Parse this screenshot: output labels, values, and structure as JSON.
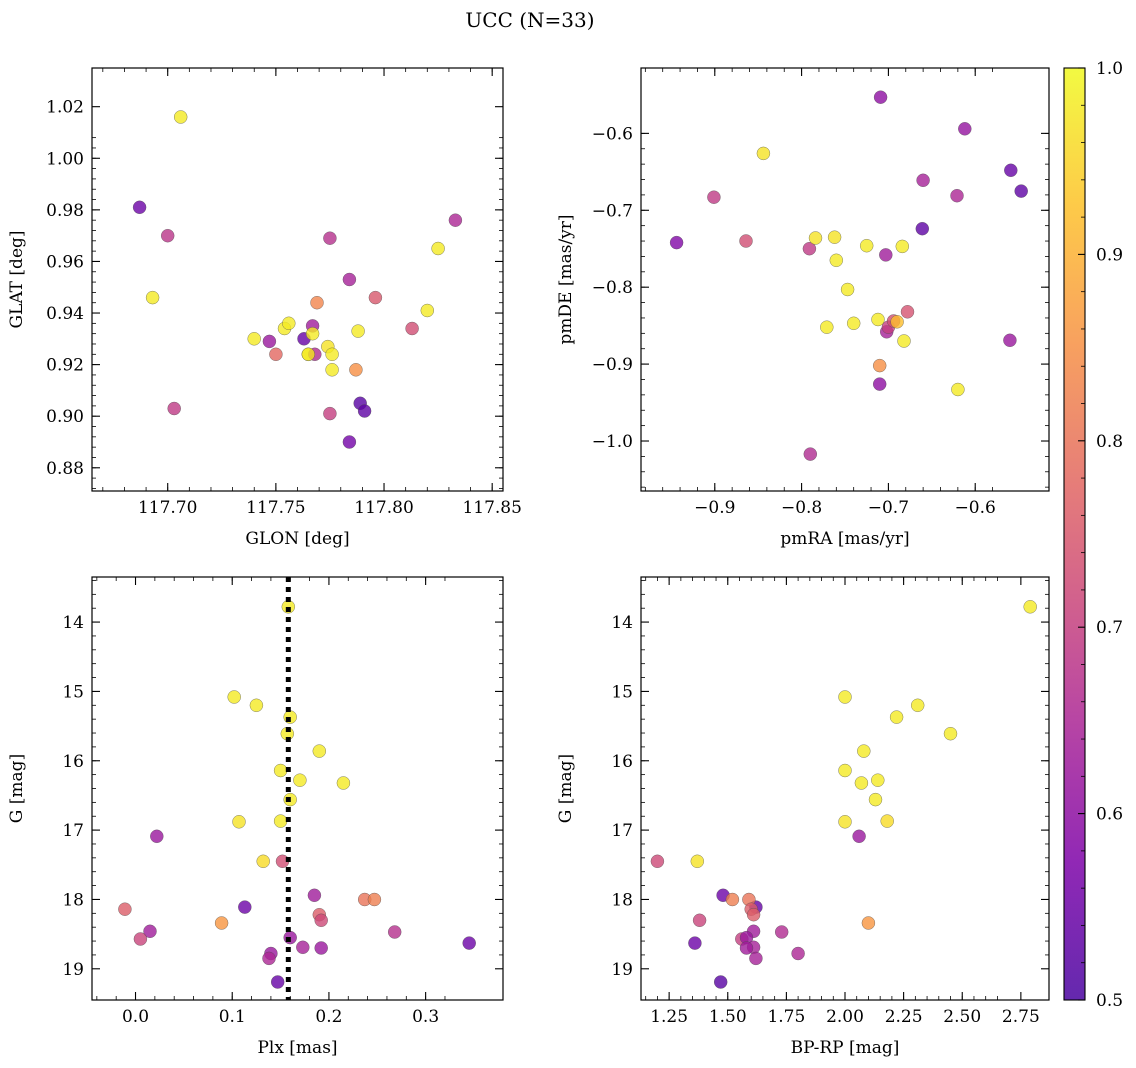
{
  "figure": {
    "title": "UCC (N=33)",
    "colormap": "plasma",
    "point_alpha": 0.8,
    "point_edge_color": "#4d4d4d",
    "reference_line_color": "#000000"
  },
  "colorbar": {
    "min": 0.5,
    "max": 1.0,
    "ticks": [
      0.5,
      0.6,
      0.7,
      0.8,
      0.9,
      1.0
    ],
    "tick_labels": [
      "0.5",
      "0.6",
      "0.7",
      "0.8",
      "0.9",
      "1.0"
    ],
    "label": ""
  },
  "chart_data": [
    {
      "type": "scatter",
      "xlabel": "GLON [deg]",
      "ylabel": "GLAT [deg]",
      "xlim": [
        117.665,
        117.855
      ],
      "ylim": [
        0.871,
        1.035
      ],
      "invert_y": false,
      "xticks": [
        117.7,
        117.75,
        117.8,
        117.85
      ],
      "xtick_labels": [
        "117.70",
        "117.75",
        "117.80",
        "117.85"
      ],
      "yticks": [
        0.88,
        0.9,
        0.92,
        0.94,
        0.96,
        0.98,
        1.0,
        1.02
      ],
      "ytick_labels": [
        "0.88",
        "0.90",
        "0.92",
        "0.94",
        "0.96",
        "0.98",
        "1.00",
        "1.02"
      ],
      "x": [
        117.687,
        117.7,
        117.706,
        117.693,
        117.703,
        117.74,
        117.747,
        117.75,
        117.754,
        117.756,
        117.763,
        117.765,
        117.767,
        117.767,
        117.768,
        117.769,
        117.774,
        117.775,
        117.775,
        117.776,
        117.776,
        117.784,
        117.784,
        117.787,
        117.788,
        117.789,
        117.791,
        117.796,
        117.813,
        117.82,
        117.825,
        117.833,
        117.765
      ],
      "y": [
        0.981,
        0.97,
        1.016,
        0.946,
        0.903,
        0.93,
        0.929,
        0.924,
        0.934,
        0.936,
        0.93,
        0.924,
        0.935,
        0.932,
        0.924,
        0.944,
        0.927,
        0.969,
        0.901,
        0.924,
        0.918,
        0.953,
        0.89,
        0.918,
        0.933,
        0.905,
        0.902,
        0.946,
        0.934,
        0.941,
        0.965,
        0.976,
        0.924
      ],
      "color_values": [
        0.55,
        0.68,
        0.98,
        0.98,
        0.69,
        0.98,
        0.62,
        0.78,
        0.98,
        0.98,
        0.54,
        0.98,
        0.63,
        0.98,
        0.66,
        0.83,
        0.97,
        0.67,
        0.7,
        0.98,
        0.98,
        0.64,
        0.56,
        0.85,
        0.98,
        0.52,
        0.53,
        0.75,
        0.73,
        0.98,
        0.98,
        0.65,
        0.98
      ]
    },
    {
      "type": "scatter",
      "xlabel": "pmRA [mas/yr]",
      "ylabel": "pmDE [mas/yr]",
      "xlim": [
        -0.985,
        -0.515
      ],
      "ylim": [
        -1.065,
        -0.515
      ],
      "invert_y": false,
      "xticks": [
        -0.9,
        -0.8,
        -0.7,
        -0.6
      ],
      "xtick_labels": [
        "−0.9",
        "−0.8",
        "−0.7",
        "−0.6"
      ],
      "yticks": [
        -1.0,
        -0.9,
        -0.8,
        -0.7,
        -0.6
      ],
      "ytick_labels": [
        "−1.0",
        "−0.9",
        "−0.8",
        "−0.7",
        "−0.6"
      ],
      "x": [
        -0.944,
        -0.901,
        -0.864,
        -0.844,
        -0.791,
        -0.79,
        -0.784,
        -0.771,
        -0.762,
        -0.76,
        -0.747,
        -0.74,
        -0.725,
        -0.712,
        -0.71,
        -0.71,
        -0.709,
        -0.703,
        -0.702,
        -0.7,
        -0.694,
        -0.69,
        -0.684,
        -0.682,
        -0.678,
        -0.661,
        -0.66,
        -0.621,
        -0.62,
        -0.612,
        -0.56,
        -0.559,
        -0.547
      ],
      "y": [
        -0.742,
        -0.683,
        -0.74,
        -0.626,
        -0.75,
        -1.017,
        -0.736,
        -0.852,
        -0.735,
        -0.765,
        -0.803,
        -0.847,
        -0.746,
        -0.842,
        -0.902,
        -0.926,
        -0.553,
        -0.758,
        -0.858,
        -0.852,
        -0.844,
        -0.845,
        -0.747,
        -0.87,
        -0.832,
        -0.724,
        -0.661,
        -0.681,
        -0.933,
        -0.594,
        -0.869,
        -0.648,
        -0.675
      ],
      "color_values": [
        0.58,
        0.69,
        0.73,
        0.97,
        0.69,
        0.66,
        0.97,
        0.98,
        0.97,
        0.98,
        0.98,
        0.98,
        0.98,
        0.98,
        0.85,
        0.6,
        0.6,
        0.63,
        0.64,
        0.7,
        0.73,
        0.92,
        0.98,
        0.98,
        0.74,
        0.53,
        0.64,
        0.65,
        0.98,
        0.61,
        0.62,
        0.54,
        0.53
      ]
    },
    {
      "type": "scatter",
      "xlabel": "Plx [mas]",
      "ylabel": "G [mag]",
      "xlim": [
        -0.045,
        0.38
      ],
      "ylim": [
        13.35,
        19.45
      ],
      "invert_y": true,
      "xticks": [
        0.0,
        0.1,
        0.2,
        0.3
      ],
      "xtick_labels": [
        "0.0",
        "0.1",
        "0.2",
        "0.3"
      ],
      "yticks": [
        14,
        15,
        16,
        17,
        18,
        19
      ],
      "ytick_labels": [
        "14",
        "15",
        "16",
        "17",
        "18",
        "19"
      ],
      "vline": 0.158,
      "x": [
        0.158,
        0.102,
        0.125,
        0.16,
        0.157,
        0.19,
        0.15,
        0.17,
        0.215,
        0.16,
        0.107,
        0.15,
        0.022,
        0.132,
        0.152,
        0.185,
        0.113,
        0.237,
        0.247,
        -0.011,
        0.19,
        0.192,
        0.015,
        0.005,
        0.089,
        0.268,
        0.16,
        0.173,
        0.192,
        0.14,
        0.138,
        0.345,
        0.147
      ],
      "y": [
        13.78,
        15.08,
        15.2,
        15.37,
        15.61,
        15.86,
        16.14,
        16.28,
        16.32,
        16.56,
        16.88,
        16.87,
        17.09,
        17.45,
        17.45,
        17.94,
        18.11,
        18.0,
        18.0,
        18.14,
        18.22,
        18.3,
        18.46,
        18.57,
        18.34,
        18.47,
        18.55,
        18.69,
        18.7,
        18.78,
        18.85,
        18.63,
        19.19
      ],
      "color_values": [
        0.98,
        0.98,
        0.98,
        0.98,
        0.98,
        0.98,
        0.98,
        0.98,
        0.98,
        0.98,
        0.97,
        0.98,
        0.62,
        0.96,
        0.73,
        0.63,
        0.55,
        0.8,
        0.82,
        0.76,
        0.76,
        0.72,
        0.63,
        0.71,
        0.86,
        0.67,
        0.62,
        0.64,
        0.62,
        0.62,
        0.65,
        0.55,
        0.54
      ]
    },
    {
      "type": "scatter",
      "xlabel": "BP-RP [mag]",
      "ylabel": "G [mag]",
      "xlim": [
        1.13,
        2.87
      ],
      "ylim": [
        13.35,
        19.45
      ],
      "invert_y": true,
      "xticks": [
        1.25,
        1.5,
        1.75,
        2.0,
        2.25,
        2.5,
        2.75
      ],
      "xtick_labels": [
        "1.25",
        "1.50",
        "1.75",
        "2.00",
        "2.25",
        "2.50",
        "2.75"
      ],
      "yticks": [
        14,
        15,
        16,
        17,
        18,
        19
      ],
      "ytick_labels": [
        "14",
        "15",
        "16",
        "17",
        "18",
        "19"
      ],
      "x": [
        2.79,
        2.0,
        2.31,
        2.22,
        2.45,
        2.08,
        2.0,
        2.14,
        2.07,
        2.13,
        2.0,
        2.18,
        2.06,
        1.2,
        1.37,
        1.48,
        1.52,
        1.62,
        1.59,
        1.6,
        1.61,
        1.38,
        1.61,
        1.73,
        2.1,
        1.56,
        1.58,
        1.61,
        1.58,
        1.8,
        1.62,
        1.36,
        1.47
      ],
      "y": [
        13.78,
        15.08,
        15.2,
        15.37,
        15.61,
        15.86,
        16.14,
        16.28,
        16.32,
        16.56,
        16.88,
        16.87,
        17.09,
        17.45,
        17.45,
        17.94,
        18.0,
        18.11,
        18.0,
        18.14,
        18.22,
        18.3,
        18.46,
        18.47,
        18.34,
        18.57,
        18.55,
        18.69,
        18.7,
        18.78,
        18.85,
        18.63,
        19.19
      ],
      "color_values": [
        0.98,
        0.98,
        0.98,
        0.98,
        0.98,
        0.98,
        0.98,
        0.98,
        0.98,
        0.98,
        0.97,
        0.96,
        0.62,
        0.72,
        0.97,
        0.55,
        0.82,
        0.54,
        0.8,
        0.76,
        0.76,
        0.71,
        0.63,
        0.66,
        0.86,
        0.7,
        0.62,
        0.64,
        0.63,
        0.65,
        0.64,
        0.55,
        0.52
      ]
    }
  ]
}
